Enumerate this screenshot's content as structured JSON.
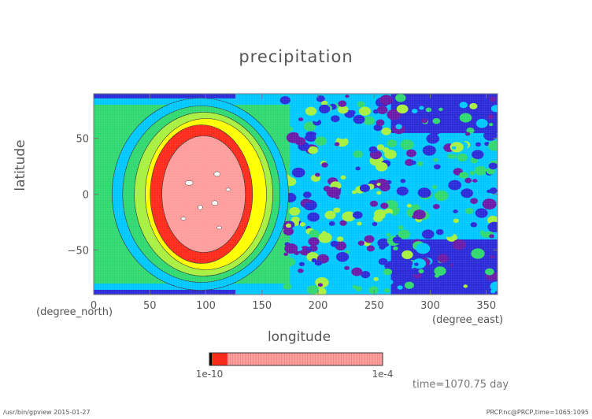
{
  "chart_data": {
    "type": "heatmap",
    "title": "precipitation",
    "xlabel": "longitude",
    "ylabel": "latitude",
    "x_units": "(degree_east)",
    "y_units": "(degree_north)",
    "xlim": [
      0,
      360
    ],
    "ylim": [
      -90,
      90
    ],
    "x_ticks": [
      0,
      50,
      100,
      150,
      200,
      250,
      300,
      350
    ],
    "y_ticks": [
      -50,
      0,
      50
    ],
    "x_tick_labels": [
      "0",
      "50",
      "100",
      "150",
      "200",
      "250",
      "300",
      "350"
    ],
    "y_tick_labels": [
      "−50",
      "0",
      "50"
    ],
    "colorbar": {
      "min_label": "1e-10",
      "max_label": "1e-4",
      "colors": [
        "#000000",
        "#ff2a1a",
        "#ff9c9c"
      ]
    },
    "field_colors": [
      "#6a1aa8",
      "#2a2ad8",
      "#00c8ff",
      "#30d870",
      "#a8f040",
      "#ffff00",
      "#ff2a1a",
      "#ff9c9c",
      "#ffffff"
    ],
    "time_label": "time=1070.75 day",
    "grid": true
  },
  "footer": {
    "left": "/usr/bin/gpview  2015-01-27",
    "right": "PRCP.nc@PRCP,time=1065:1095"
  }
}
